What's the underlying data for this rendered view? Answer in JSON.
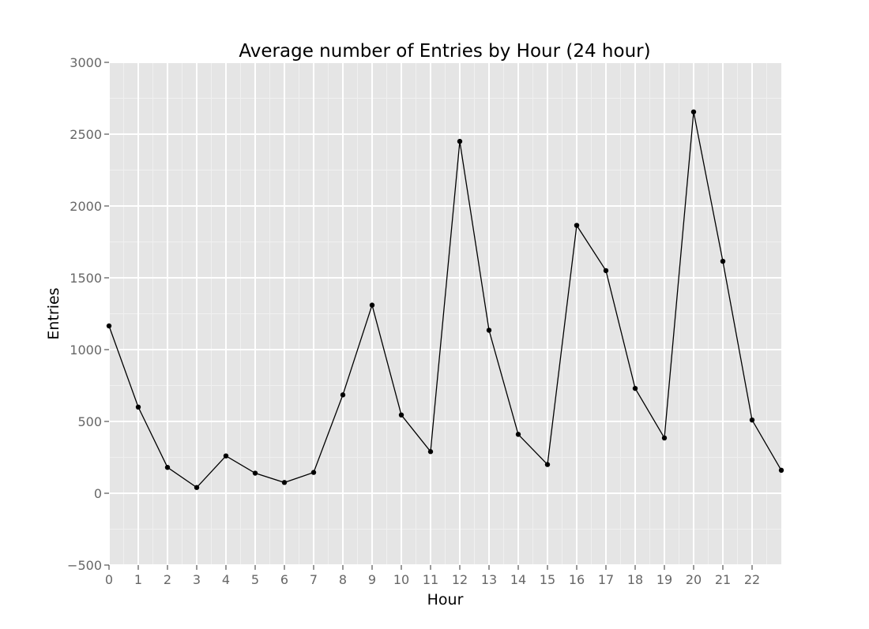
{
  "chart_data": {
    "type": "line",
    "title": "Average number of Entries by Hour (24 hour)",
    "xlabel": "Hour",
    "ylabel": "Entries",
    "xlim": [
      0,
      23
    ],
    "ylim": [
      -500,
      3000
    ],
    "x_ticks": [
      0,
      1,
      2,
      3,
      4,
      5,
      6,
      7,
      8,
      9,
      10,
      11,
      12,
      13,
      14,
      15,
      16,
      17,
      18,
      19,
      20,
      21,
      22
    ],
    "y_ticks": [
      -500,
      0,
      500,
      1000,
      1500,
      2000,
      2500,
      3000
    ],
    "y_tick_labels": [
      "−500",
      "0",
      "500",
      "1000",
      "1500",
      "2000",
      "2500",
      "3000"
    ],
    "grid": true,
    "series": [
      {
        "x": [
          0,
          1,
          2,
          3,
          4,
          5,
          6,
          7,
          8,
          9,
          10,
          11,
          12,
          13,
          14,
          15,
          16,
          17,
          18,
          19,
          20,
          21,
          22,
          23
        ],
        "values": [
          1165,
          600,
          180,
          40,
          260,
          140,
          75,
          145,
          685,
          1310,
          545,
          290,
          2450,
          1135,
          410,
          200,
          1865,
          1550,
          730,
          385,
          2655,
          1615,
          510,
          160
        ]
      }
    ],
    "colors": {
      "panel": "#e5e5e5",
      "grid_major": "#ffffff",
      "grid_minor": "#f0f0f0",
      "line": "#000000",
      "tick_text": "#666666"
    }
  }
}
